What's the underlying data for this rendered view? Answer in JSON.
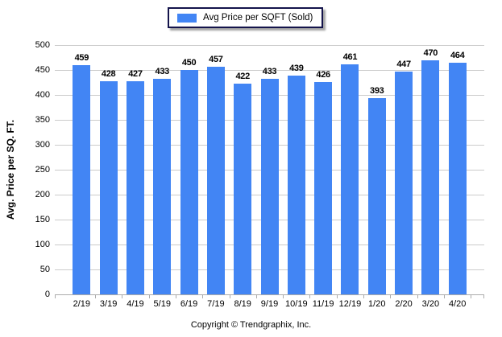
{
  "legend": {
    "label": "Avg Price per SQFT (Sold)"
  },
  "footer": {
    "copyright": "Copyright © Trendgraphix, Inc."
  },
  "colors": {
    "bar": "#4285f4",
    "gridline": "#cbcbcb",
    "axis": "#ababab",
    "legend_border": "#14144b",
    "text": "#000000",
    "background": "#ffffff"
  },
  "chart_data": {
    "type": "bar",
    "title": "",
    "xlabel": "",
    "ylabel": "Avg. Price per SQ. FT.",
    "series_name": "Avg Price per SQFT (Sold)",
    "categories": [
      "2/19",
      "3/19",
      "4/19",
      "5/19",
      "6/19",
      "7/19",
      "8/19",
      "9/19",
      "10/19",
      "11/19",
      "12/19",
      "1/20",
      "2/20",
      "3/20",
      "4/20"
    ],
    "values": [
      459,
      428,
      427,
      433,
      450,
      457,
      422,
      433,
      439,
      426,
      461,
      393,
      447,
      470,
      464
    ],
    "ylim": [
      0,
      500
    ],
    "yticks": [
      0,
      50,
      100,
      150,
      200,
      250,
      300,
      350,
      400,
      450,
      500
    ],
    "grid": true,
    "value_labels": true,
    "legend_position": "top-center"
  }
}
